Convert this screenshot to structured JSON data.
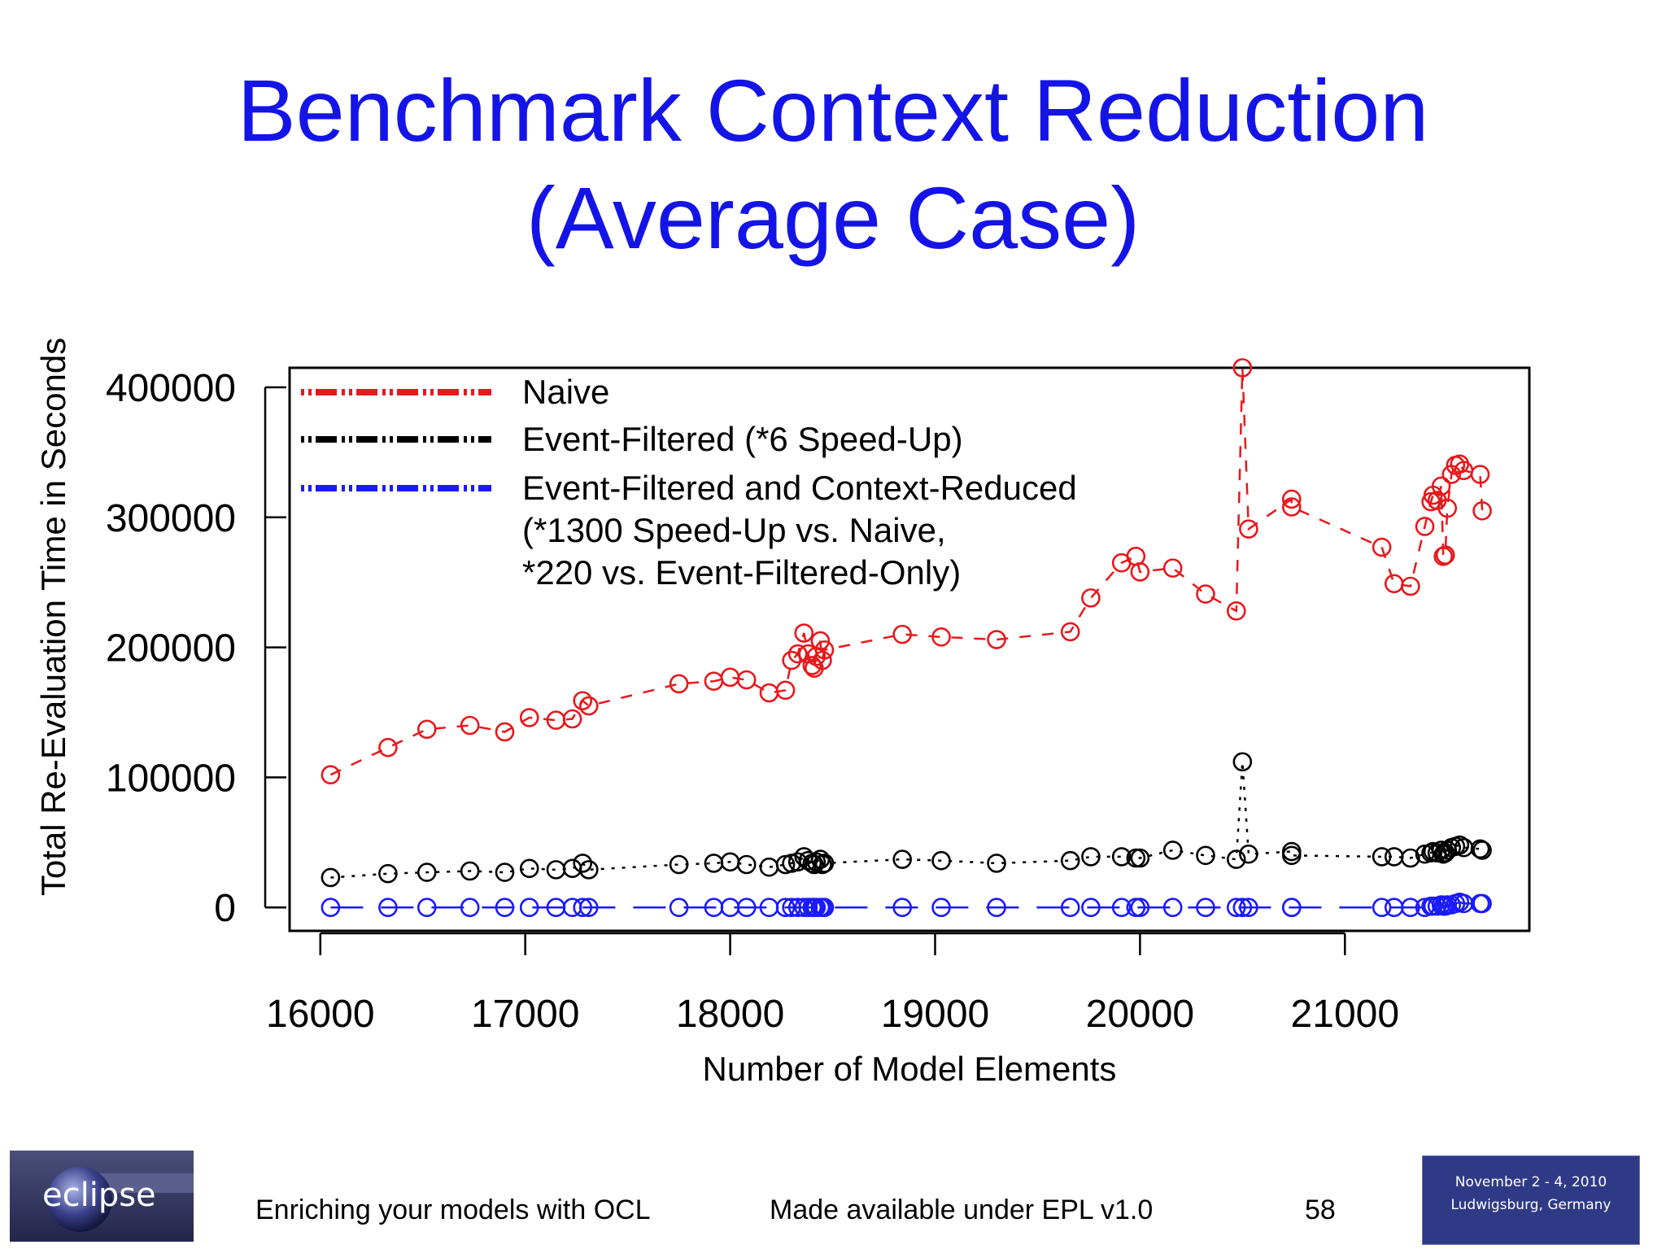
{
  "slide": {
    "title_line1": "Benchmark Context Reduction",
    "title_line2": "(Average Case)",
    "title_color": "#1414e8"
  },
  "footer": {
    "logo_text": "eclipse",
    "left_text": "Enriching your models with OCL",
    "center_text": "Made available under EPL v1.0",
    "page_number": "58",
    "event_line1": "November 2 - 4, 2010",
    "event_line2": "Ludwigsburg, Germany"
  },
  "chart_data": {
    "type": "scatter",
    "title": "",
    "xlabel": "Number of Model Elements",
    "ylabel": "Total Re-Evaluation Time in Seconds",
    "xlim": [
      15850,
      21900
    ],
    "ylim": [
      -18000,
      415000
    ],
    "xticks": [
      16000,
      17000,
      18000,
      19000,
      20000,
      21000
    ],
    "xtick_labels": [
      "16000",
      "17000",
      "18000",
      "19000",
      "20000",
      "21000"
    ],
    "yticks": [
      0,
      100000,
      200000,
      300000,
      400000
    ],
    "ytick_labels": [
      "0",
      "100000",
      "200000",
      "300000",
      "400000"
    ],
    "grid": false,
    "legend_position": "top-left",
    "legend": [
      {
        "label": "Naive",
        "color": "#e8181c",
        "style": "dashed"
      },
      {
        "label": "Event-Filtered (*6 Speed-Up)",
        "color": "#000000",
        "style": "dotted"
      },
      {
        "label": "Event-Filtered and Context-Reduced",
        "color": "#1a1aff",
        "style": "long-dash"
      }
    ],
    "legend_note_lines": [
      "(*1300 Speed-Up vs. Naive,",
      "*220 vs. Event-Filtered-Only)"
    ],
    "series": [
      {
        "name": "Naive",
        "color": "#e8181c",
        "line": "dashed",
        "x": [
          16050,
          16330,
          16520,
          16730,
          16900,
          17020,
          17150,
          17230,
          17280,
          17310,
          17750,
          17920,
          18000,
          18080,
          18190,
          18270,
          18300,
          18330,
          18360,
          18380,
          18400,
          18410,
          18420,
          18440,
          18450,
          18460,
          18840,
          19030,
          19300,
          19660,
          19760,
          19910,
          19980,
          20000,
          20160,
          20320,
          20470,
          20500,
          20530,
          20740,
          20740,
          21180,
          21240,
          21320,
          21390,
          21420,
          21430,
          21450,
          21470,
          21480,
          21490,
          21500,
          21520,
          21540,
          21560,
          21580,
          21660,
          21670
        ],
        "y": [
          102000,
          123000,
          137000,
          140000,
          135000,
          146000,
          144000,
          145000,
          159000,
          155000,
          172000,
          174000,
          177000,
          175000,
          165000,
          167000,
          190000,
          195000,
          211000,
          195000,
          186000,
          184000,
          193000,
          205000,
          190000,
          198000,
          210000,
          208000,
          206000,
          212000,
          238000,
          265000,
          270000,
          258000,
          261000,
          241000,
          228000,
          415000,
          291000,
          314000,
          308000,
          277000,
          249000,
          247000,
          293000,
          312000,
          317000,
          313000,
          324000,
          270000,
          271000,
          307000,
          333000,
          340000,
          341000,
          336000,
          333000,
          305000
        ]
      },
      {
        "name": "Event-Filtered (*6 Speed-Up)",
        "color": "#000000",
        "line": "dotted",
        "x": [
          16050,
          16330,
          16520,
          16730,
          16900,
          17020,
          17150,
          17230,
          17280,
          17310,
          17750,
          17920,
          18000,
          18080,
          18190,
          18270,
          18300,
          18330,
          18360,
          18380,
          18400,
          18410,
          18420,
          18440,
          18450,
          18460,
          18840,
          19030,
          19300,
          19660,
          19760,
          19910,
          19980,
          20000,
          20160,
          20320,
          20470,
          20500,
          20530,
          20740,
          20740,
          21180,
          21240,
          21320,
          21390,
          21420,
          21430,
          21450,
          21470,
          21480,
          21490,
          21500,
          21520,
          21540,
          21560,
          21580,
          21660,
          21670
        ],
        "y": [
          23000,
          26000,
          27000,
          28000,
          27000,
          30000,
          29000,
          30000,
          34000,
          29000,
          33000,
          34000,
          35000,
          33000,
          31000,
          33000,
          34000,
          35000,
          39000,
          36000,
          34000,
          33000,
          35000,
          37000,
          33000,
          34000,
          37000,
          36000,
          34000,
          36000,
          39000,
          39000,
          38000,
          38000,
          44000,
          40000,
          37000,
          112000,
          41000,
          43000,
          40000,
          39000,
          39000,
          38000,
          41000,
          42000,
          43000,
          42000,
          44000,
          41000,
          42000,
          44000,
          46000,
          47000,
          48000,
          46000,
          45000,
          44000
        ]
      },
      {
        "name": "Event-Filtered and Context-Reduced",
        "color": "#1a1aff",
        "line": "long-dash",
        "x": [
          16050,
          16330,
          16520,
          16730,
          16900,
          17020,
          17150,
          17230,
          17280,
          17310,
          17750,
          17920,
          18000,
          18080,
          18190,
          18270,
          18300,
          18330,
          18360,
          18380,
          18400,
          18410,
          18420,
          18440,
          18450,
          18460,
          18840,
          19030,
          19300,
          19660,
          19760,
          19910,
          19980,
          20000,
          20160,
          20320,
          20470,
          20500,
          20530,
          20740,
          20740,
          21180,
          21240,
          21320,
          21390,
          21420,
          21430,
          21450,
          21470,
          21480,
          21490,
          21500,
          21520,
          21540,
          21560,
          21580,
          21660,
          21670
        ],
        "y": [
          0,
          0,
          0,
          0,
          0,
          0,
          0,
          0,
          0,
          0,
          0,
          0,
          0,
          0,
          0,
          0,
          0,
          0,
          0,
          0,
          0,
          0,
          0,
          0,
          0,
          0,
          0,
          0,
          0,
          0,
          0,
          0,
          0,
          0,
          0,
          0,
          0,
          0,
          0,
          0,
          0,
          0,
          0,
          0,
          0,
          1000,
          1000,
          1000,
          2000,
          1000,
          1000,
          2000,
          2000,
          3000,
          4000,
          3000,
          3000,
          3000
        ]
      }
    ]
  }
}
